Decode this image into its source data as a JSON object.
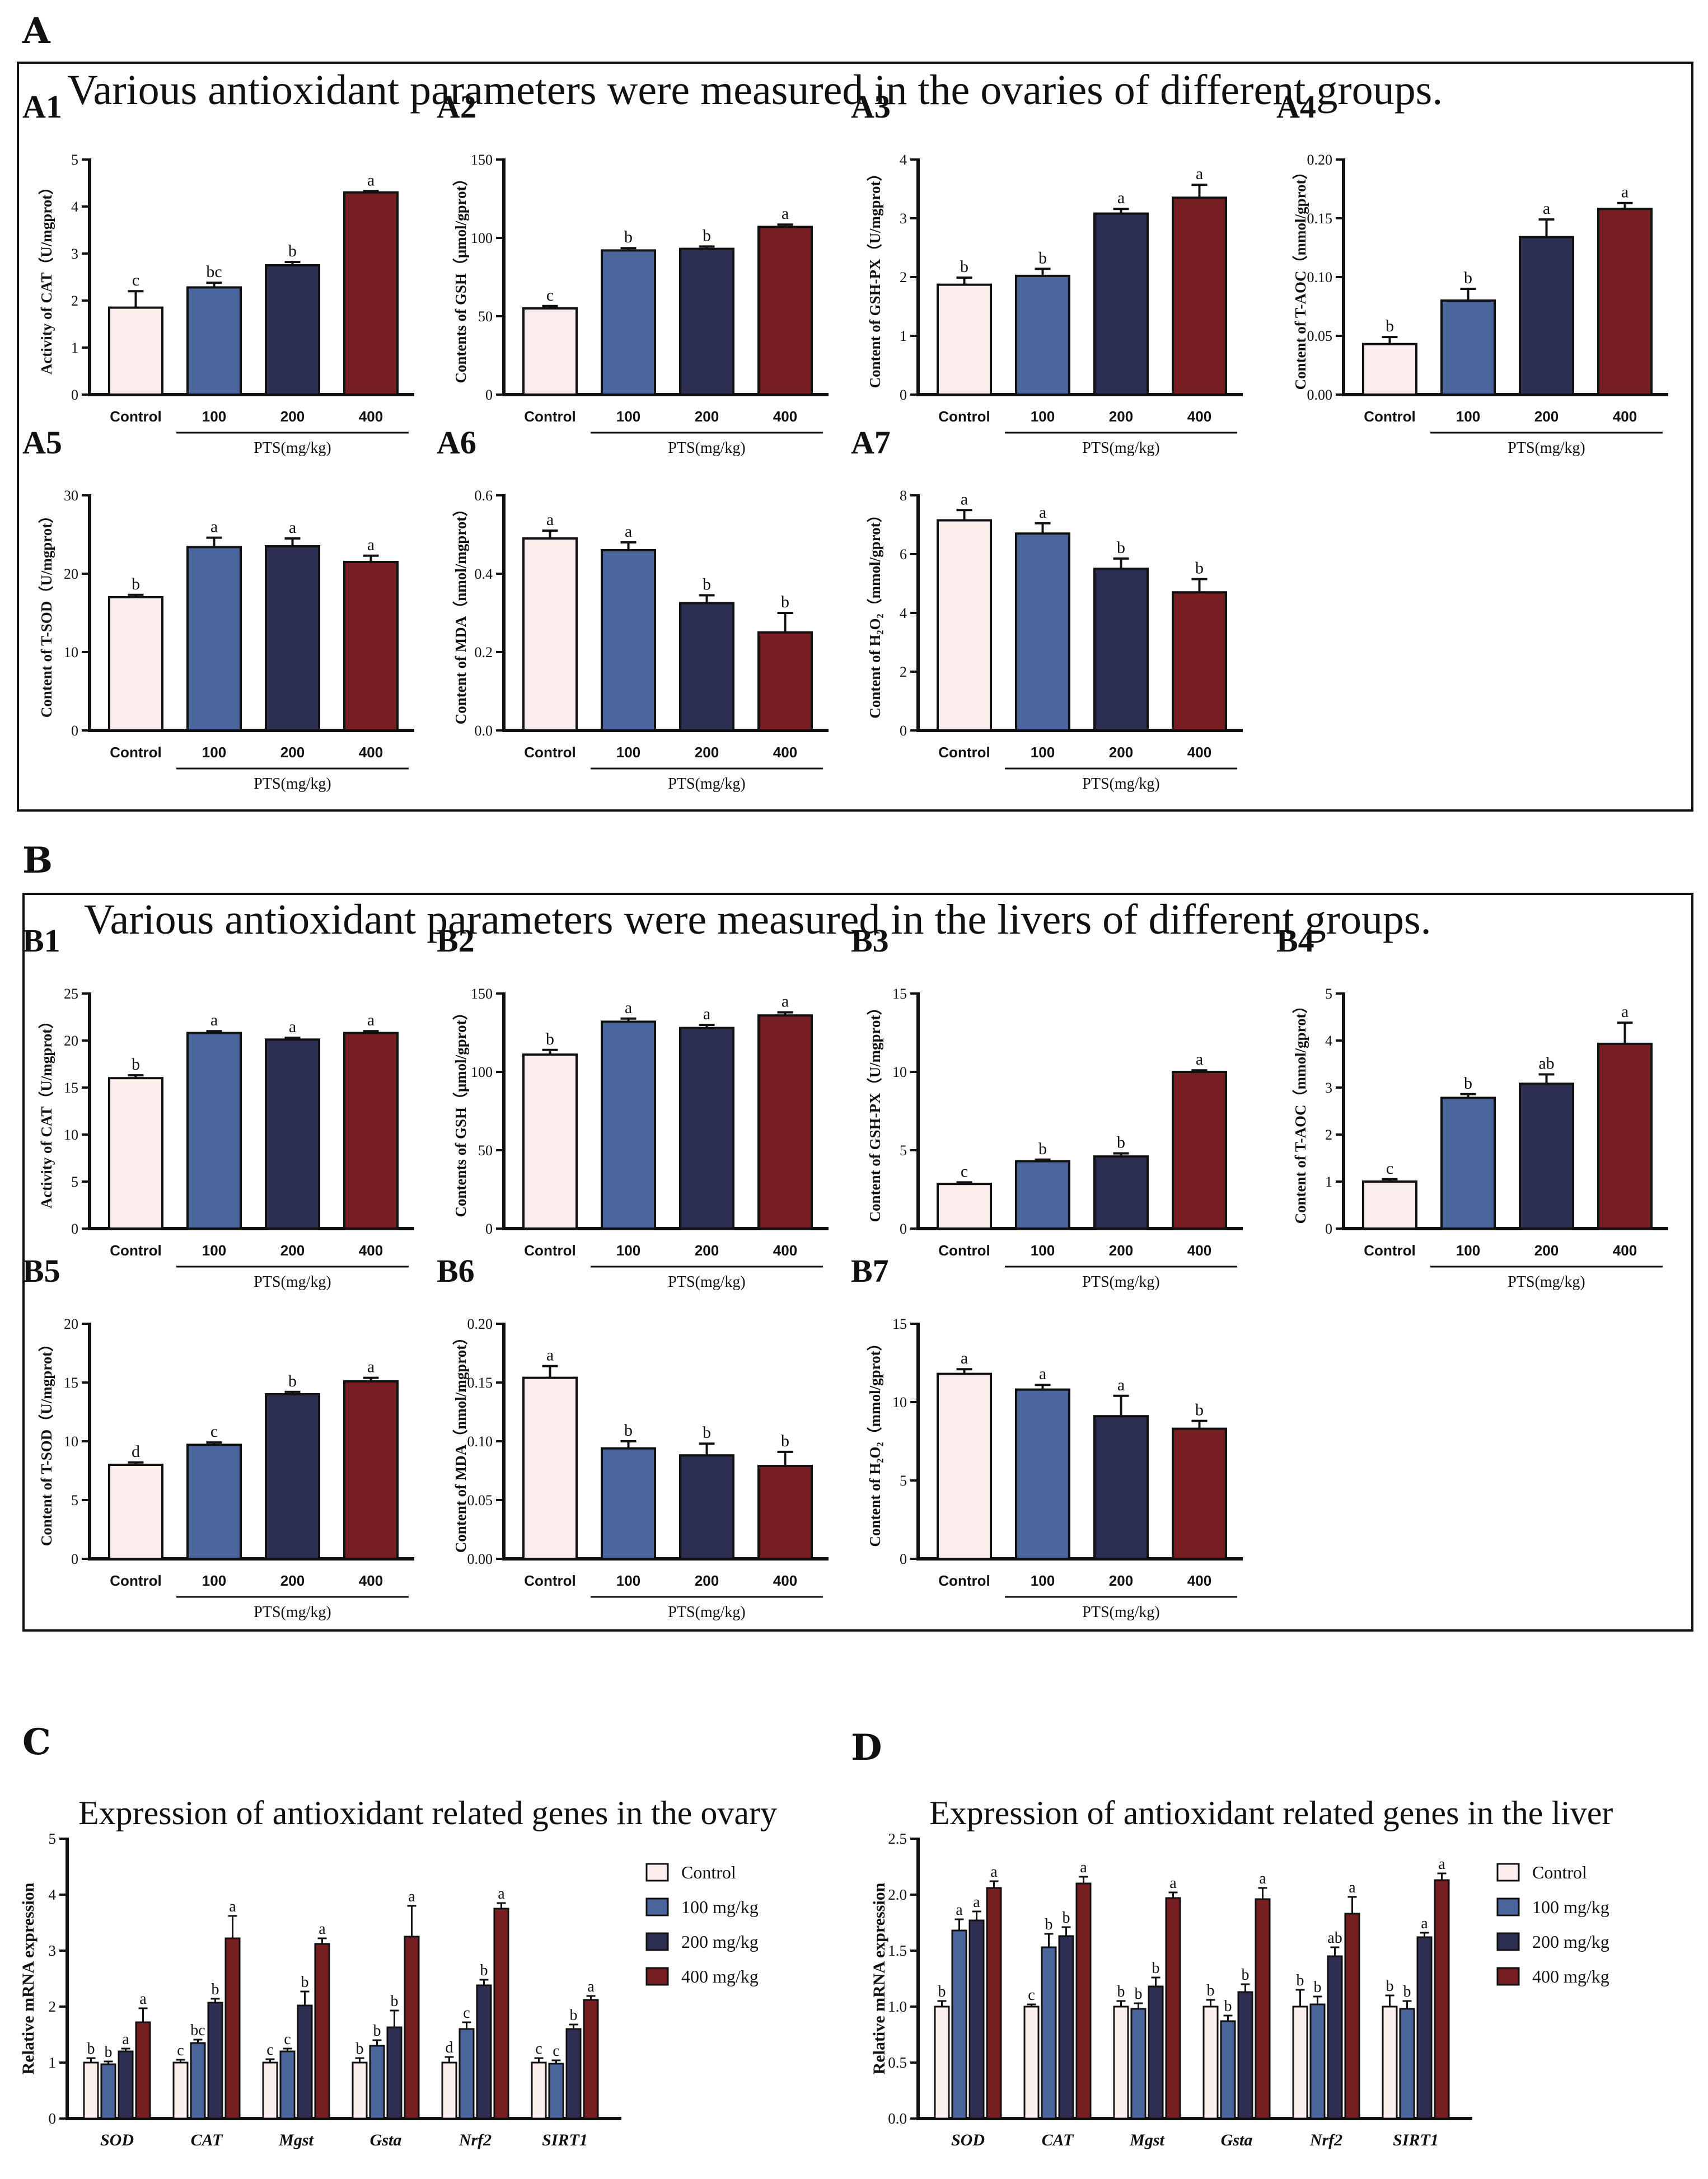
{
  "panels": {
    "A": {
      "letter": "A",
      "heading": "Various antioxidant parameters were measured in the ovaries of different groups."
    },
    "B": {
      "letter": "B",
      "heading": "Various antioxidant parameters were measured in the livers of different groups."
    },
    "C": {
      "letter": "C",
      "heading": "Expression of antioxidant related genes in the ovary"
    },
    "D": {
      "letter": "D",
      "heading": "Expression of antioxidant related genes in the liver"
    }
  },
  "colors": {
    "control": "#fdeeee",
    "dose100": "#4a659b",
    "dose200": "#2c2e52",
    "dose400": "#761e22"
  },
  "chart_data": [
    {
      "id": "A1",
      "type": "bar",
      "categories": [
        "Control",
        "100",
        "200",
        "400"
      ],
      "values": [
        1.85,
        2.28,
        2.75,
        4.3
      ],
      "errors": [
        0.35,
        0.1,
        0.07,
        0.03
      ],
      "letters": [
        "c",
        "bc",
        "b",
        "a"
      ],
      "ylabel": "Activity of CAT（U/mgprot）",
      "xlabel": "PTS(mg/kg)",
      "ylim": [
        0,
        5
      ],
      "ticks": [
        "0",
        "1",
        "2",
        "3",
        "4",
        "5"
      ]
    },
    {
      "id": "A2",
      "type": "bar",
      "categories": [
        "Control",
        "100",
        "200",
        "400"
      ],
      "values": [
        55,
        92,
        93,
        107
      ],
      "errors": [
        1.5,
        1.5,
        1.5,
        1.5
      ],
      "letters": [
        "c",
        "b",
        "b",
        "a"
      ],
      "ylabel": "Contents of GSH（μmol/gprot）",
      "xlabel": "PTS(mg/kg)",
      "ylim": [
        0,
        150
      ],
      "ticks": [
        "0",
        "50",
        "100",
        "150"
      ]
    },
    {
      "id": "A3",
      "type": "bar",
      "categories": [
        "Control",
        "100",
        "200",
        "400"
      ],
      "values": [
        1.87,
        2.02,
        3.08,
        3.35
      ],
      "errors": [
        0.12,
        0.12,
        0.08,
        0.22
      ],
      "letters": [
        "b",
        "b",
        "a",
        "a"
      ],
      "ylabel": "Content of GSH-PX（U/mgprot）",
      "xlabel": "PTS(mg/kg)",
      "ylim": [
        0,
        4
      ],
      "ticks": [
        "0",
        "1",
        "2",
        "3",
        "4"
      ]
    },
    {
      "id": "A4",
      "type": "bar",
      "categories": [
        "Control",
        "100",
        "200",
        "400"
      ],
      "values": [
        0.043,
        0.08,
        0.134,
        0.158
      ],
      "errors": [
        0.006,
        0.01,
        0.015,
        0.005
      ],
      "letters": [
        "b",
        "b",
        "a",
        "a"
      ],
      "ylabel": "Content of T-AOC（mmol/gprot）",
      "xlabel": "PTS(mg/kg)",
      "ylim": [
        0,
        0.2
      ],
      "ticks": [
        "0.00",
        "0.05",
        "0.10",
        "0.15",
        "0.20"
      ]
    },
    {
      "id": "A5",
      "type": "bar",
      "categories": [
        "Control",
        "100",
        "200",
        "400"
      ],
      "values": [
        17.0,
        23.4,
        23.5,
        21.5
      ],
      "errors": [
        0.3,
        1.2,
        1.0,
        0.8
      ],
      "letters": [
        "b",
        "a",
        "a",
        "a"
      ],
      "ylabel": "Content of T-SOD（U/mgprot）",
      "xlabel": "PTS(mg/kg)",
      "ylim": [
        0,
        30
      ],
      "ticks": [
        "0",
        "10",
        "20",
        "30"
      ]
    },
    {
      "id": "A6",
      "type": "bar",
      "categories": [
        "Control",
        "100",
        "200",
        "400"
      ],
      "values": [
        0.49,
        0.46,
        0.325,
        0.25
      ],
      "errors": [
        0.02,
        0.02,
        0.02,
        0.05
      ],
      "letters": [
        "a",
        "a",
        "b",
        "b"
      ],
      "ylabel": "Content of MDA（nmol/mgprot）",
      "xlabel": "PTS(mg/kg)",
      "ylim": [
        0,
        0.6
      ],
      "ticks": [
        "0.0",
        "0.2",
        "0.4",
        "0.6"
      ]
    },
    {
      "id": "A7",
      "type": "bar",
      "categories": [
        "Control",
        "100",
        "200",
        "400"
      ],
      "values": [
        7.15,
        6.7,
        5.5,
        4.7
      ],
      "errors": [
        0.35,
        0.35,
        0.35,
        0.45
      ],
      "letters": [
        "a",
        "a",
        "b",
        "b"
      ],
      "ylabel": "Content of H₂O₂（mmol/gprot）",
      "xlabel": "PTS(mg/kg)",
      "ylim": [
        0,
        8
      ],
      "ticks": [
        "0",
        "2",
        "4",
        "6",
        "8"
      ]
    },
    {
      "id": "B1",
      "type": "bar",
      "categories": [
        "Control",
        "100",
        "200",
        "400"
      ],
      "values": [
        16.0,
        20.8,
        20.1,
        20.8
      ],
      "errors": [
        0.3,
        0.2,
        0.2,
        0.2
      ],
      "letters": [
        "b",
        "a",
        "a",
        "a"
      ],
      "ylabel": "Activity of CAT（U/mgprot）",
      "xlabel": "PTS(mg/kg)",
      "ylim": [
        0,
        25
      ],
      "ticks": [
        "0",
        "5",
        "10",
        "15",
        "20",
        "25"
      ]
    },
    {
      "id": "B2",
      "type": "bar",
      "categories": [
        "Control",
        "100",
        "200",
        "400"
      ],
      "values": [
        111,
        132,
        128,
        136
      ],
      "errors": [
        3,
        2,
        2,
        2
      ],
      "letters": [
        "b",
        "a",
        "a",
        "a"
      ],
      "ylabel": "Contents of GSH（μmol/gprot）",
      "xlabel": "PTS(mg/kg)",
      "ylim": [
        0,
        150
      ],
      "ticks": [
        "0",
        "50",
        "100",
        "150"
      ]
    },
    {
      "id": "B3",
      "type": "bar",
      "categories": [
        "Control",
        "100",
        "200",
        "400"
      ],
      "values": [
        2.85,
        4.3,
        4.6,
        10.0
      ],
      "errors": [
        0.1,
        0.1,
        0.2,
        0.1
      ],
      "letters": [
        "c",
        "b",
        "b",
        "a"
      ],
      "ylabel": "Content of GSH-PX（U/mgprot）",
      "xlabel": "PTS(mg/kg)",
      "ylim": [
        0,
        15
      ],
      "ticks": [
        "0",
        "5",
        "10",
        "15"
      ]
    },
    {
      "id": "B4",
      "type": "bar",
      "categories": [
        "Control",
        "100",
        "200",
        "400"
      ],
      "values": [
        1.0,
        2.78,
        3.08,
        3.93
      ],
      "errors": [
        0.05,
        0.08,
        0.2,
        0.45
      ],
      "letters": [
        "c",
        "b",
        "ab",
        "a"
      ],
      "ylabel": "Content of T-AOC（mmol/gprot）",
      "xlabel": "PTS(mg/kg)",
      "ylim": [
        0,
        5
      ],
      "ticks": [
        "0",
        "1",
        "2",
        "3",
        "4",
        "5"
      ]
    },
    {
      "id": "B5",
      "type": "bar",
      "categories": [
        "Control",
        "100",
        "200",
        "400"
      ],
      "values": [
        8.0,
        9.7,
        14.0,
        15.1
      ],
      "errors": [
        0.2,
        0.2,
        0.2,
        0.3
      ],
      "letters": [
        "d",
        "c",
        "b",
        "a"
      ],
      "ylabel": "Content of T-SOD（U/mgprot）",
      "xlabel": "PTS(mg/kg)",
      "ylim": [
        0,
        20
      ],
      "ticks": [
        "0",
        "5",
        "10",
        "15",
        "20"
      ]
    },
    {
      "id": "B6",
      "type": "bar",
      "categories": [
        "Control",
        "100",
        "200",
        "400"
      ],
      "values": [
        0.154,
        0.094,
        0.088,
        0.079
      ],
      "errors": [
        0.01,
        0.006,
        0.01,
        0.012
      ],
      "letters": [
        "a",
        "b",
        "b",
        "b"
      ],
      "ylabel": "Content of MDA（nmol/mgprot）",
      "xlabel": "PTS(mg/kg)",
      "ylim": [
        0,
        0.2
      ],
      "ticks": [
        "0.00",
        "0.05",
        "0.10",
        "0.15",
        "0.20"
      ]
    },
    {
      "id": "B7",
      "type": "bar",
      "categories": [
        "Control",
        "100",
        "200",
        "400"
      ],
      "values": [
        11.8,
        10.8,
        9.1,
        8.3
      ],
      "errors": [
        0.3,
        0.3,
        1.3,
        0.5
      ],
      "letters": [
        "a",
        "a",
        "a",
        "b"
      ],
      "ylabel": "Content of H₂O₂（mmol/gprot）",
      "xlabel": "PTS(mg/kg)",
      "ylim": [
        0,
        15
      ],
      "ticks": [
        "0",
        "5",
        "10",
        "15"
      ]
    },
    {
      "id": "C",
      "type": "bar",
      "title": "Expression of antioxidant related genes in the ovary",
      "categories": [
        "SOD",
        "CAT",
        "Mgst",
        "Gsta",
        "Nrf2",
        "SIRT1"
      ],
      "ylabel": "Relative mRNA expression",
      "ylim": [
        0,
        5
      ],
      "ticks": [
        "0",
        "1",
        "2",
        "3",
        "4",
        "5"
      ],
      "series": [
        {
          "name": "Control",
          "values": [
            1.0,
            1.0,
            1.0,
            1.0,
            1.0,
            1.0
          ],
          "errors": [
            0.08,
            0.05,
            0.06,
            0.08,
            0.1,
            0.08
          ],
          "letters": [
            "b",
            "c",
            "c",
            "b",
            "d",
            "c"
          ]
        },
        {
          "name": "100 mg/kg",
          "values": [
            0.97,
            1.35,
            1.2,
            1.3,
            1.6,
            0.98
          ],
          "errors": [
            0.05,
            0.06,
            0.05,
            0.1,
            0.12,
            0.06
          ],
          "letters": [
            "b",
            "bc",
            "c",
            "b",
            "c",
            "c"
          ]
        },
        {
          "name": "200 mg/kg",
          "values": [
            1.2,
            2.07,
            2.02,
            1.63,
            2.38,
            1.6
          ],
          "errors": [
            0.05,
            0.07,
            0.25,
            0.3,
            0.1,
            0.08
          ],
          "letters": [
            "a",
            "b",
            "b",
            "b",
            "b",
            "b"
          ]
        },
        {
          "name": "400 mg/kg",
          "values": [
            1.72,
            3.22,
            3.12,
            3.25,
            3.75,
            2.12
          ],
          "errors": [
            0.25,
            0.4,
            0.1,
            0.55,
            0.1,
            0.07
          ],
          "letters": [
            "a",
            "a",
            "a",
            "a",
            "a",
            "a"
          ]
        }
      ]
    },
    {
      "id": "D",
      "type": "bar",
      "title": "Expression of antioxidant related genes in the liver",
      "categories": [
        "SOD",
        "CAT",
        "Mgst",
        "Gsta",
        "Nrf2",
        "SIRT1"
      ],
      "ylabel": "Relative mRNA expression",
      "ylim": [
        0,
        2.5
      ],
      "ticks": [
        "0.0",
        "0.5",
        "1.0",
        "1.5",
        "2.0",
        "2.5"
      ],
      "series": [
        {
          "name": "Control",
          "values": [
            1.0,
            1.0,
            1.0,
            1.0,
            1.0,
            1.0
          ],
          "errors": [
            0.05,
            0.02,
            0.05,
            0.06,
            0.15,
            0.1
          ],
          "letters": [
            "b",
            "c",
            "b",
            "b",
            "b",
            "b"
          ]
        },
        {
          "name": "100 mg/kg",
          "values": [
            1.68,
            1.53,
            0.98,
            0.87,
            1.02,
            0.98
          ],
          "errors": [
            0.1,
            0.12,
            0.05,
            0.05,
            0.07,
            0.07
          ],
          "letters": [
            "a",
            "b",
            "b",
            "b",
            "b",
            "b"
          ]
        },
        {
          "name": "200 mg/kg",
          "values": [
            1.77,
            1.63,
            1.18,
            1.13,
            1.45,
            1.62
          ],
          "errors": [
            0.08,
            0.08,
            0.08,
            0.07,
            0.08,
            0.04
          ],
          "letters": [
            "a",
            "b",
            "b",
            "b",
            "ab",
            "a"
          ]
        },
        {
          "name": "400 mg/kg",
          "values": [
            2.06,
            2.1,
            1.97,
            1.96,
            1.83,
            2.13
          ],
          "errors": [
            0.06,
            0.06,
            0.05,
            0.1,
            0.15,
            0.06
          ],
          "letters": [
            "a",
            "a",
            "a",
            "a",
            "a",
            "a"
          ]
        }
      ]
    }
  ]
}
